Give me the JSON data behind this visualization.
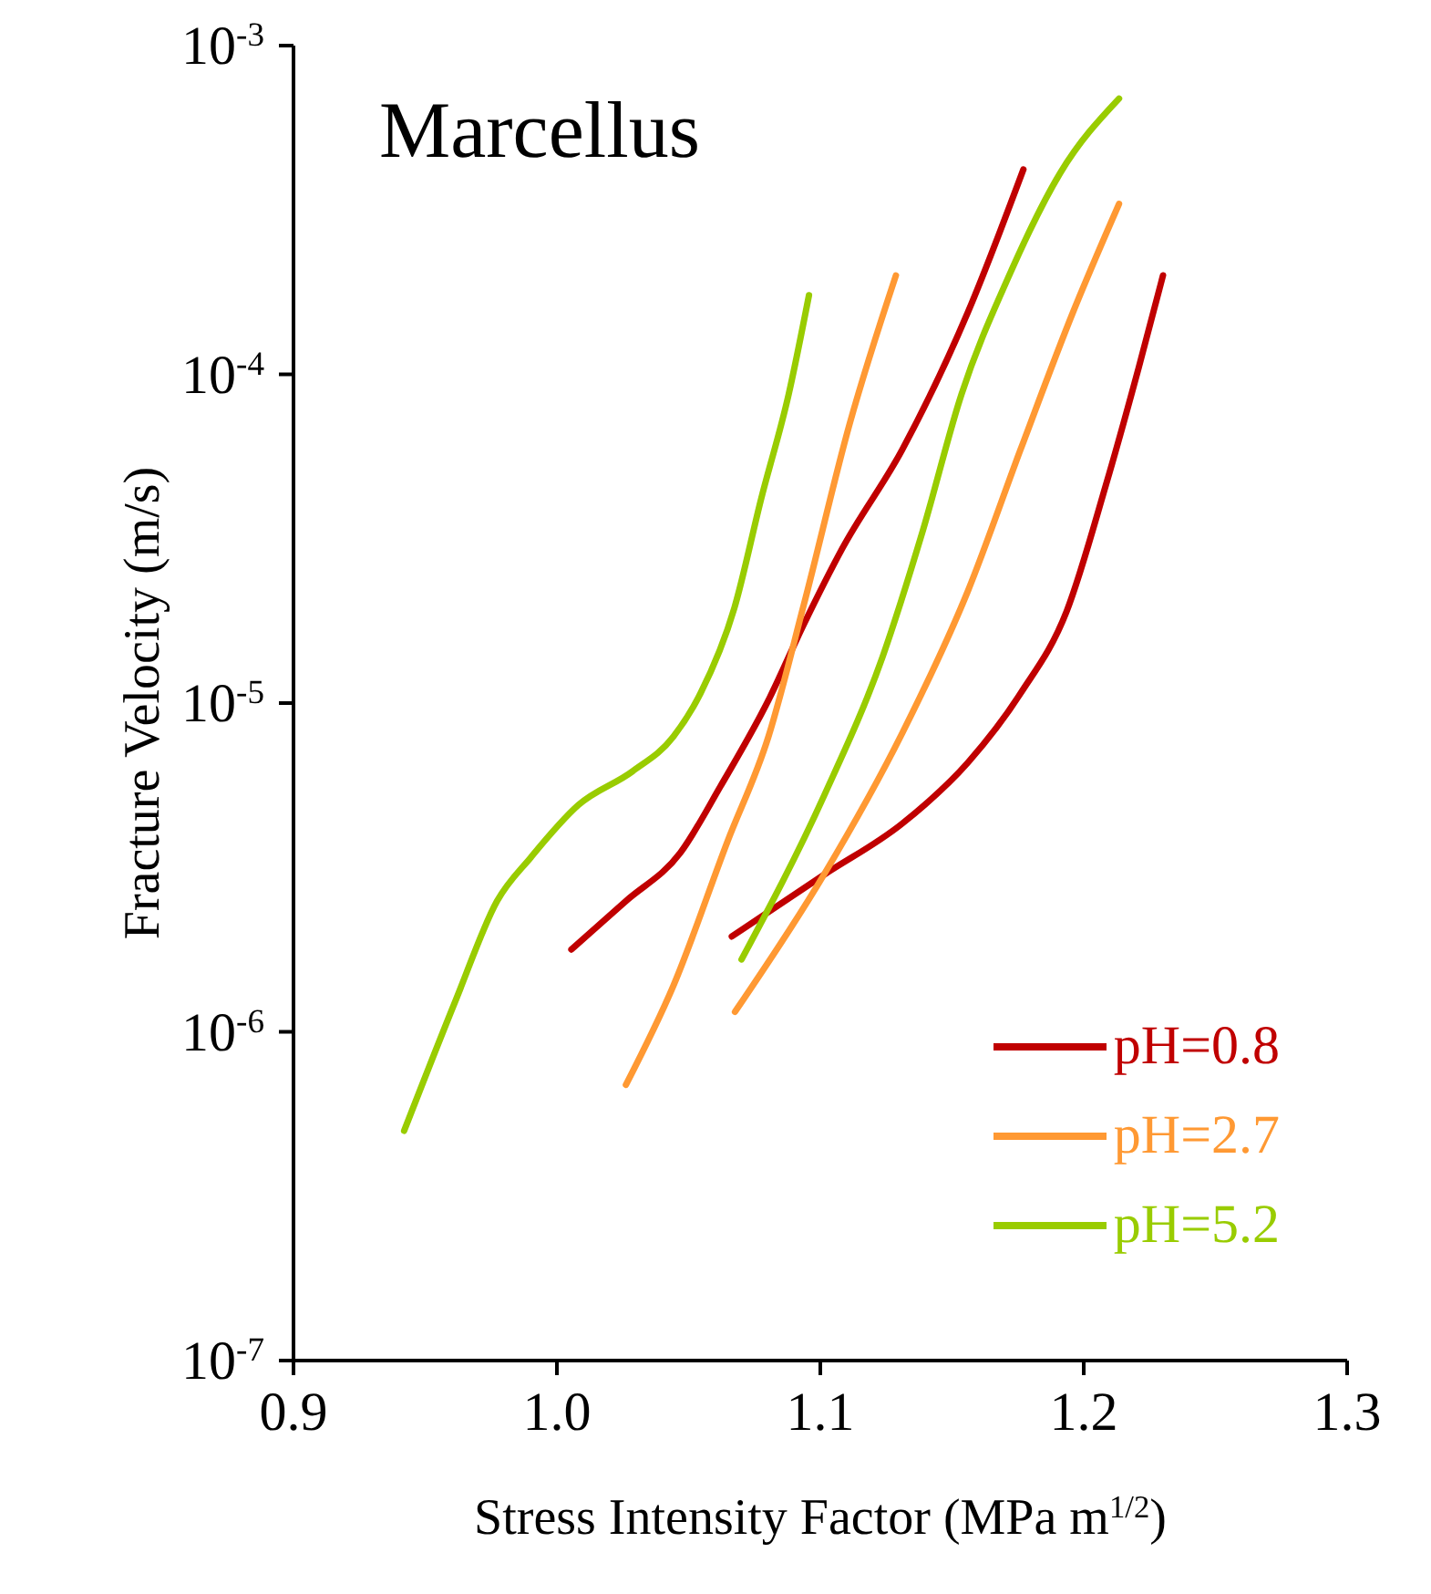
{
  "chart_data": {
    "type": "line",
    "title": "Marcellus",
    "xlabel": "Stress Intensity Factor (MPa m$^{1/2}$)",
    "ylabel": "Fracture Velocity (m/s)",
    "log": "y",
    "grid": false,
    "legend": "bottom right",
    "marker": "none",
    "line_style": "solid",
    "xlim": [
      0.9,
      1.3
    ],
    "xticks": [
      {
        "value": 0.9,
        "label": "0.9"
      },
      {
        "value": 1.0,
        "label": "1.0"
      },
      {
        "value": 1.1,
        "label": "1.1"
      },
      {
        "value": 1.2,
        "label": "1.2"
      },
      {
        "value": 1.3,
        "label": "1.3"
      }
    ],
    "ylim": [
      1e-07,
      0.001
    ],
    "yticks": [
      {
        "value": 1e-07,
        "label": "10$^{-7}$"
      },
      {
        "value": 1e-06,
        "label": "10$^{-6}$"
      },
      {
        "value": 1e-05,
        "label": "10$^{-5}$"
      },
      {
        "value": 0.0001,
        "label": "10$^{-4}$"
      },
      {
        "value": 0.001,
        "label": "10$^{-3}$"
      }
    ],
    "series": [
      {
        "name": "pH=0.8",
        "color": "#c00000",
        "x": [
          1.0055,
          1.0262,
          1.0468,
          1.0622,
          1.0803,
          1.0938,
          1.1083,
          1.1311,
          1.1561,
          1.1771
        ],
        "values": [
          1.78e-06,
          2.5e-06,
          3.5e-06,
          5.6e-06,
          1.02e-05,
          1.74e-05,
          2.95e-05,
          5.9e-05,
          0.000155,
          0.00042
        ]
      },
      {
        "color": "#c00000",
        "x": [
          1.0664,
          1.1013,
          1.1311,
          1.1561,
          1.176,
          1.1935,
          1.2084,
          1.2209,
          1.2301
        ],
        "values": [
          1.95e-06,
          3e-06,
          4.3e-06,
          6.6e-06,
          1.07e-05,
          1.9e-05,
          4.6e-05,
          0.000105,
          0.0002
        ]
      },
      {
        "name": "pH=2.7",
        "color": "#ff9933",
        "x": [
          1.0262,
          1.0442,
          1.0648,
          1.0803,
          1.0938,
          1.1112,
          1.1287
        ],
        "values": [
          6.9e-07,
          1.38e-06,
          3.8e-06,
          7.9e-06,
          2e-05,
          7.1e-05,
          0.0002
        ]
      },
      {
        "color": "#ff9933",
        "x": [
          1.0676,
          1.1013,
          1.1311,
          1.1561,
          1.176,
          1.196,
          1.2134
        ],
        "values": [
          1.15e-06,
          3e-06,
          8.1e-06,
          2.2e-05,
          5.9e-05,
          0.000155,
          0.00033
        ]
      },
      {
        "name": "pH=5.2",
        "color": "#99cc00",
        "x": [
          0.942,
          0.9618,
          0.9773,
          0.9902,
          1.0082,
          1.0287,
          1.0442,
          1.0545,
          1.0674,
          1.0776,
          1.088,
          1.0957
        ],
        "values": [
          5e-07,
          1.26e-06,
          2.5e-06,
          3.4e-06,
          4.9e-06,
          6.2e-06,
          7.9e-06,
          1.07e-05,
          1.95e-05,
          4.2e-05,
          8.7e-05,
          0.000174
        ]
      },
      {
        "color": "#99cc00",
        "x": [
          1.0701,
          1.1013,
          1.1236,
          1.1387,
          1.1536,
          1.1711,
          1.1911,
          1.2134
        ],
        "values": [
          1.66e-06,
          5.2e-06,
          1.38e-05,
          3.3e-05,
          8.7e-05,
          0.000195,
          0.00041,
          0.00069
        ]
      }
    ]
  }
}
